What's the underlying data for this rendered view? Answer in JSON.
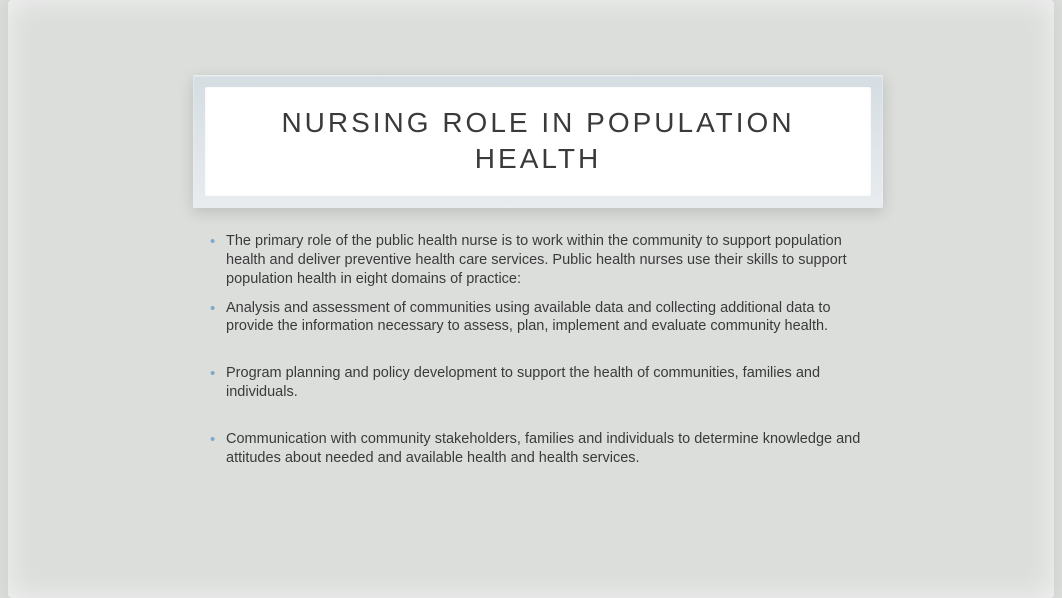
{
  "slide": {
    "title": "NURSING ROLE IN POPULATION HEALTH",
    "title_color": "#3a3a3a",
    "title_fontsize": 28,
    "title_letter_spacing": 3,
    "background_color": "#dcdedc",
    "title_box_outer_gradient_top": "#d5dde2",
    "title_box_outer_gradient_bottom": "#e8ecef",
    "title_box_inner_bg": "#ffffff",
    "bullet_color": "#7da8c9",
    "body_text_color": "#3a3a3a",
    "body_fontsize": 14.5,
    "bullets": [
      "The primary role of the public health nurse is to work within the community to support population health and deliver preventive health care services. Public health nurses use their skills to support population health in eight domains of practice:",
      "Analysis and assessment of communities using available data and collecting additional data to provide the information necessary to assess, plan, implement and evaluate community health.",
      "Program planning and policy development to support the health of communities, families and individuals.",
      "Communication with community stakeholders, families and individuals to determine knowledge and attitudes about needed and available health and health services."
    ],
    "bullet_spacing_after": [
      false,
      true,
      true,
      false
    ]
  }
}
